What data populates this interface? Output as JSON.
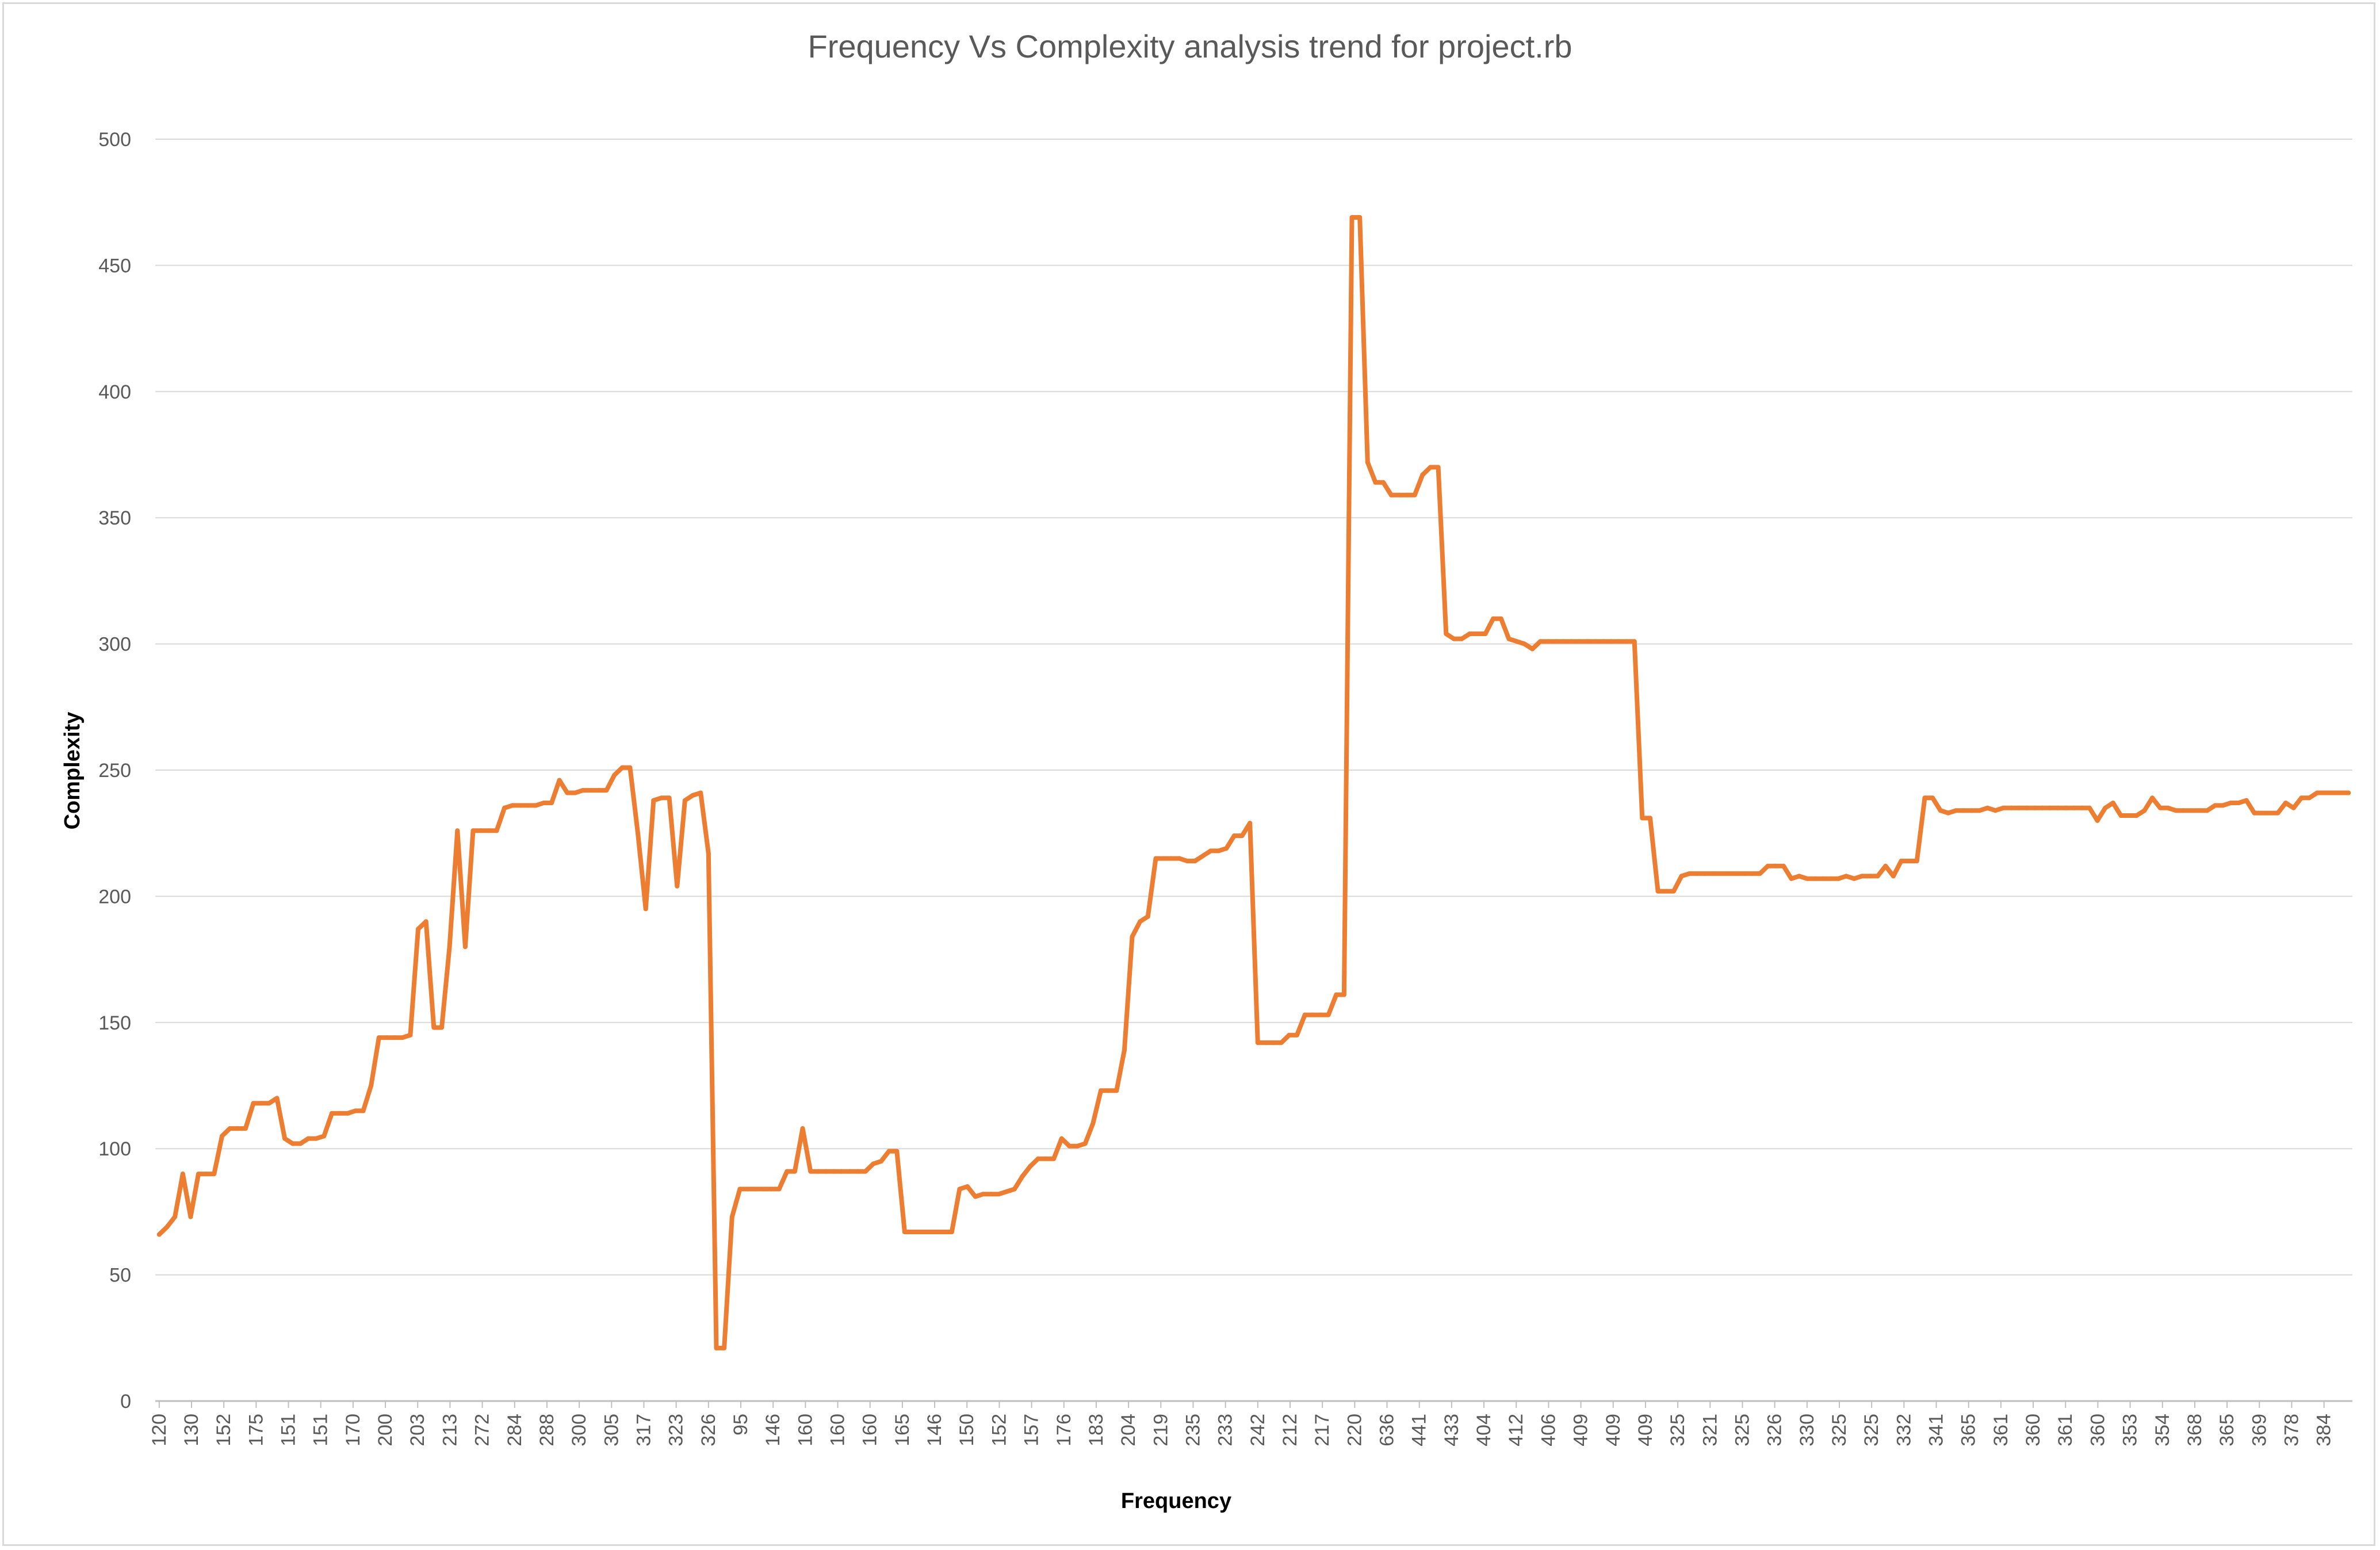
{
  "chart_data": {
    "type": "line",
    "title": "Frequency Vs Complexity analysis trend for project.rb",
    "xlabel": "Frequency",
    "ylabel": "Complexity",
    "ylim": [
      0,
      500
    ],
    "y_ticks": [
      0,
      50,
      100,
      150,
      200,
      250,
      300,
      350,
      400,
      450,
      500
    ],
    "grid": "horizontal",
    "legend": "none",
    "line_color": "#ED7D31",
    "x_tick_labels": [
      "120",
      "130",
      "152",
      "175",
      "151",
      "151",
      "170",
      "200",
      "203",
      "213",
      "272",
      "284",
      "288",
      "300",
      "305",
      "317",
      "323",
      "326",
      "95",
      "146",
      "160",
      "160",
      "160",
      "165",
      "146",
      "150",
      "152",
      "157",
      "176",
      "183",
      "204",
      "219",
      "235",
      "233",
      "242",
      "212",
      "217",
      "220",
      "636",
      "441",
      "433",
      "404",
      "412",
      "406",
      "409",
      "409",
      "409",
      "325",
      "321",
      "325",
      "326",
      "330",
      "325",
      "325",
      "332",
      "341",
      "365",
      "361",
      "360",
      "361",
      "360",
      "353",
      "354",
      "368",
      "365",
      "369",
      "378",
      "384"
    ],
    "series": [
      {
        "values": [
          66,
          69,
          73,
          90,
          73,
          90,
          90,
          90,
          105,
          108,
          108,
          108,
          118,
          118,
          118,
          120,
          104,
          102,
          102,
          104,
          104,
          105,
          114,
          114,
          114,
          115,
          115,
          125,
          144,
          144,
          144,
          144,
          145,
          187,
          190,
          148,
          148,
          180,
          226,
          180,
          226,
          226,
          226,
          226,
          235,
          236,
          236,
          236,
          236,
          237,
          237,
          246,
          241,
          241,
          242,
          242,
          242,
          242,
          248,
          251,
          251,
          225,
          195,
          238,
          239,
          239,
          204,
          238,
          240,
          241,
          217,
          21,
          21,
          73,
          84,
          84,
          84,
          84,
          84,
          84,
          91,
          91,
          108,
          91,
          91,
          91,
          91,
          91,
          91,
          91,
          91,
          94,
          95,
          99,
          99,
          67,
          67,
          67,
          67,
          67,
          67,
          67,
          84,
          85,
          81,
          82,
          82,
          82,
          83,
          84,
          89,
          93,
          96,
          96,
          96,
          104,
          101,
          101,
          102,
          110,
          123,
          123,
          123,
          139,
          184,
          190,
          192,
          215,
          215,
          215,
          215,
          214,
          214,
          216,
          218,
          218,
          219,
          224,
          224,
          229,
          142,
          142,
          142,
          142,
          145,
          145,
          153,
          153,
          153,
          153,
          161,
          161,
          469,
          469,
          372,
          364,
          364,
          359,
          359,
          359,
          359,
          367,
          370,
          370,
          304,
          302,
          302,
          304,
          304,
          304,
          310,
          310,
          302,
          301,
          300,
          298,
          301,
          301,
          301,
          301,
          301,
          301,
          301,
          301,
          301,
          301,
          301,
          301,
          301,
          231,
          231,
          202,
          202,
          202,
          208,
          209,
          209,
          209,
          209,
          209,
          209,
          209,
          209,
          209,
          209,
          212,
          212,
          212,
          207,
          208,
          207,
          207,
          207,
          207,
          207,
          208,
          207,
          208,
          208,
          208,
          212,
          208,
          214,
          214,
          214,
          239,
          239,
          234,
          233,
          234,
          234,
          234,
          234,
          235,
          234,
          235,
          235,
          235,
          235,
          235,
          235,
          235,
          235,
          235,
          235,
          235,
          235,
          230,
          235,
          237,
          232,
          232,
          232,
          234,
          239,
          235,
          235,
          234,
          234,
          234,
          234,
          234,
          236,
          236,
          237,
          237,
          238,
          233,
          233,
          233,
          233,
          237,
          235,
          239,
          239,
          241,
          241,
          241,
          241,
          241
        ]
      }
    ]
  }
}
